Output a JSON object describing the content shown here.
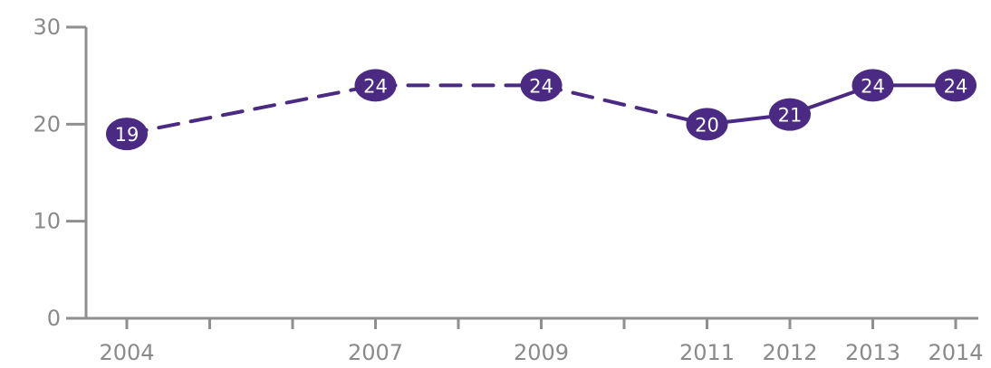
{
  "chart_data": {
    "type": "line",
    "title": "",
    "xlabel": "",
    "ylabel": "",
    "x_range": [
      2004,
      2014
    ],
    "x_ticks": [
      2004,
      2005,
      2006,
      2007,
      2008,
      2009,
      2010,
      2011,
      2012,
      2013,
      2014
    ],
    "x_tick_labels": [
      "2004",
      "",
      "",
      "2007",
      "",
      "2009",
      "",
      "2011",
      "2012",
      "2013",
      "2014"
    ],
    "ylim": [
      0,
      30
    ],
    "y_ticks": [
      0,
      10,
      20,
      30
    ],
    "y_tick_labels": [
      "0",
      "10",
      "20",
      "30"
    ],
    "grid": false,
    "legend": "none",
    "series": [
      {
        "x": [
          2004,
          2007,
          2009,
          2011,
          2012,
          2013,
          2014
        ],
        "values": [
          19,
          24,
          24,
          20,
          21,
          24,
          24
        ],
        "labels": [
          "19",
          "24",
          "24",
          "20",
          "21",
          "24",
          "24"
        ],
        "dashed_until": 2011,
        "color": "#4a2a82"
      }
    ],
    "axis_color": "#8f8f8f",
    "label_text_color": "#ffffff"
  }
}
